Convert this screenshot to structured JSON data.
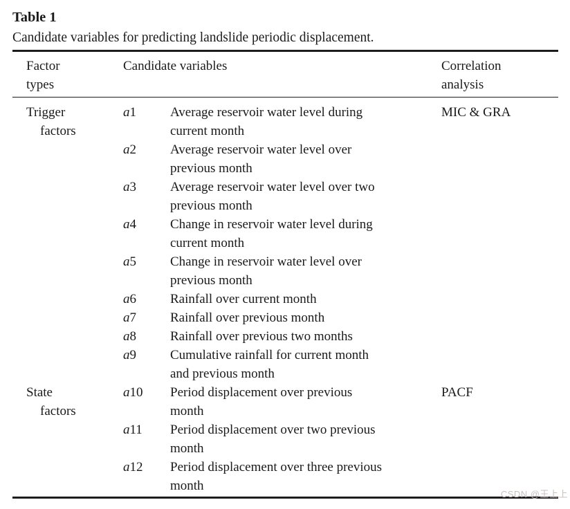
{
  "table": {
    "title": "Table 1",
    "caption": "Candidate variables for predicting landslide periodic displacement.",
    "columns": {
      "factor_types": [
        "Factor",
        "types"
      ],
      "candidate_variables": "Candidate variables",
      "correlation_analysis": [
        "Correlation",
        "analysis"
      ]
    },
    "groups": [
      {
        "type_lines": [
          "Trigger",
          "factors"
        ],
        "correlation": "MIC & GRA",
        "vars": [
          {
            "id": "a1",
            "lines": [
              "Average reservoir water level during",
              "current month"
            ]
          },
          {
            "id": "a2",
            "lines": [
              "Average reservoir water level over",
              "previous month"
            ]
          },
          {
            "id": "a3",
            "lines": [
              "Average reservoir water level over two",
              "previous month"
            ]
          },
          {
            "id": "a4",
            "lines": [
              "Change in reservoir water level during",
              "current month"
            ]
          },
          {
            "id": "a5",
            "lines": [
              "Change in reservoir water level over",
              "previous month"
            ]
          },
          {
            "id": "a6",
            "lines": [
              "Rainfall over current month"
            ]
          },
          {
            "id": "a7",
            "lines": [
              "Rainfall over previous month"
            ]
          },
          {
            "id": "a8",
            "lines": [
              "Rainfall over previous two months"
            ]
          },
          {
            "id": "a9",
            "lines": [
              "Cumulative rainfall for current month",
              "and previous month"
            ]
          }
        ]
      },
      {
        "type_lines": [
          "State",
          "factors"
        ],
        "correlation": "PACF",
        "vars": [
          {
            "id": "a10",
            "lines": [
              "Period displacement over previous",
              "month"
            ]
          },
          {
            "id": "a11",
            "lines": [
              "Period displacement over two previous",
              "month"
            ]
          },
          {
            "id": "a12",
            "lines": [
              "Period displacement over three previous",
              "month"
            ]
          }
        ]
      }
    ]
  },
  "watermark": "CSDN @王上上",
  "colors": {
    "text": "#1a1a1a",
    "rule": "#1c1c1c",
    "background": "#ffffff",
    "watermark": "#c9c0c0"
  }
}
